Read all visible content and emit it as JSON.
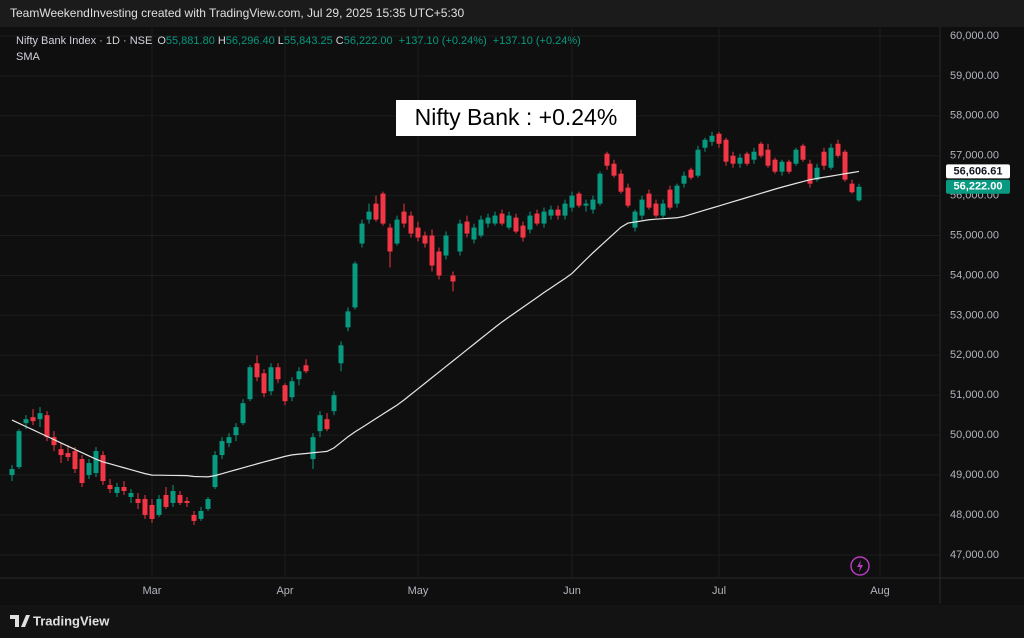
{
  "header": {
    "text": "TeamWeekendInvesting created with TradingView.com, Jul 29, 2025 15:35 UTC+5:30"
  },
  "footer": {
    "brand": "TradingView"
  },
  "chart_data": {
    "type": "candlestick",
    "symbol": "Nifty Bank Index · 1D · NSE",
    "legend_values": [
      {
        "label": "O",
        "value": "55,881.80"
      },
      {
        "label": "H",
        "value": "56,296.40"
      },
      {
        "label": "L",
        "value": "55,843.25"
      },
      {
        "label": "C",
        "value": "56,222.00"
      }
    ],
    "change_labels": [
      "+137.10 (+0.24%)",
      "+137.10 (+0.24%)"
    ],
    "annotation": "Nifty Bank : +0.24%",
    "up_color": "#089981",
    "down_color": "#f23645",
    "categories": [
      null,
      null,
      null,
      null,
      null,
      null,
      null,
      null,
      null,
      null,
      null,
      null,
      null,
      null,
      null,
      null,
      null,
      null,
      null,
      null,
      "Mar",
      null,
      null,
      null,
      null,
      null,
      null,
      null,
      null,
      null,
      null,
      null,
      null,
      null,
      null,
      null,
      null,
      null,
      null,
      "Apr",
      null,
      null,
      null,
      null,
      null,
      null,
      null,
      null,
      null,
      null,
      null,
      null,
      null,
      null,
      null,
      null,
      null,
      null,
      "May",
      null,
      null,
      null,
      null,
      null,
      null,
      null,
      null,
      null,
      null,
      null,
      null,
      null,
      null,
      null,
      null,
      null,
      null,
      null,
      null,
      null,
      "Jun",
      null,
      null,
      null,
      null,
      null,
      null,
      null,
      null,
      null,
      null,
      null,
      null,
      null,
      null,
      null,
      null,
      null,
      null,
      null,
      null,
      "Jul",
      null,
      null,
      null,
      null,
      null,
      null,
      null,
      null,
      null,
      null,
      null,
      null,
      null,
      null,
      null,
      null,
      null,
      null,
      null,
      null,
      null,
      null,
      "Aug"
    ],
    "ohlc": [
      [
        49000,
        49250,
        48850,
        49150
      ],
      [
        49200,
        50150,
        49150,
        50100
      ],
      [
        50300,
        50500,
        50150,
        50400
      ],
      [
        50450,
        50650,
        50250,
        50350
      ],
      [
        50400,
        50700,
        50200,
        50550
      ],
      [
        50500,
        50600,
        49850,
        49950
      ],
      [
        49950,
        50100,
        49600,
        49750
      ],
      [
        49650,
        49800,
        49300,
        49500
      ],
      [
        49550,
        49750,
        49350,
        49450
      ],
      [
        49600,
        49700,
        49050,
        49150
      ],
      [
        49400,
        49500,
        48700,
        48800
      ],
      [
        49000,
        49400,
        48900,
        49300
      ],
      [
        49050,
        49700,
        48950,
        49600
      ],
      [
        49500,
        49600,
        48750,
        48850
      ],
      [
        48750,
        48900,
        48550,
        48650
      ],
      [
        48550,
        48800,
        48450,
        48700
      ],
      [
        48700,
        48850,
        48500,
        48600
      ],
      [
        48450,
        48650,
        48300,
        48550
      ],
      [
        48400,
        48550,
        48150,
        48300
      ],
      [
        48400,
        48500,
        47900,
        48000
      ],
      [
        48250,
        48400,
        47800,
        47900
      ],
      [
        48000,
        48500,
        47950,
        48400
      ],
      [
        48500,
        48700,
        48150,
        48200
      ],
      [
        48300,
        48750,
        48200,
        48600
      ],
      [
        48500,
        48600,
        48250,
        48300
      ],
      [
        48350,
        48450,
        48200,
        48300
      ],
      [
        48000,
        48100,
        47750,
        47850
      ],
      [
        47900,
        48200,
        47850,
        48100
      ],
      [
        48150,
        48450,
        48100,
        48400
      ],
      [
        48700,
        49600,
        48650,
        49500
      ],
      [
        49500,
        49950,
        49400,
        49850
      ],
      [
        49800,
        50050,
        49700,
        49950
      ],
      [
        50000,
        50300,
        49850,
        50200
      ],
      [
        50300,
        50900,
        50250,
        50800
      ],
      [
        50900,
        51750,
        50850,
        51700
      ],
      [
        51800,
        52000,
        51350,
        51450
      ],
      [
        51550,
        51650,
        50950,
        51050
      ],
      [
        51100,
        51800,
        51000,
        51700
      ],
      [
        51700,
        51800,
        51300,
        51400
      ],
      [
        51250,
        51300,
        50750,
        50850
      ],
      [
        50950,
        51450,
        50850,
        51350
      ],
      [
        51400,
        51700,
        51250,
        51600
      ],
      [
        51750,
        51900,
        51550,
        51600
      ],
      [
        49400,
        50050,
        49150,
        49950
      ],
      [
        50100,
        50600,
        49950,
        50500
      ],
      [
        50400,
        50550,
        50100,
        50150
      ],
      [
        50600,
        51100,
        50500,
        51000
      ],
      [
        51800,
        52350,
        51600,
        52250
      ],
      [
        52700,
        53200,
        52600,
        53100
      ],
      [
        53200,
        54350,
        53150,
        54300
      ],
      [
        54800,
        55400,
        54700,
        55300
      ],
      [
        55400,
        55800,
        55300,
        55600
      ],
      [
        55800,
        56000,
        55350,
        55400
      ],
      [
        56050,
        56100,
        55250,
        55300
      ],
      [
        55200,
        55300,
        54200,
        54600
      ],
      [
        54800,
        55500,
        54750,
        55400
      ],
      [
        55600,
        55800,
        55200,
        55300
      ],
      [
        55500,
        55600,
        54950,
        55050
      ],
      [
        55200,
        55350,
        54850,
        54950
      ],
      [
        55000,
        55100,
        54700,
        54800
      ],
      [
        55000,
        55150,
        54100,
        54250
      ],
      [
        54600,
        54700,
        53900,
        54000
      ],
      [
        54500,
        55100,
        54400,
        55000
      ],
      [
        54000,
        54100,
        53600,
        53850
      ],
      [
        54600,
        55400,
        54500,
        55300
      ],
      [
        55350,
        55500,
        54950,
        55050
      ],
      [
        54900,
        55300,
        54800,
        55200
      ],
      [
        55000,
        55500,
        54950,
        55400
      ],
      [
        55300,
        55550,
        55200,
        55450
      ],
      [
        55300,
        55600,
        55250,
        55500
      ],
      [
        55550,
        55650,
        55250,
        55300
      ],
      [
        55200,
        55600,
        55150,
        55500
      ],
      [
        55450,
        55550,
        55050,
        55100
      ],
      [
        55250,
        55350,
        54850,
        54950
      ],
      [
        55150,
        55600,
        55050,
        55500
      ],
      [
        55550,
        55650,
        55250,
        55300
      ],
      [
        55300,
        55700,
        55200,
        55600
      ],
      [
        55500,
        55750,
        55400,
        55650
      ],
      [
        55650,
        55750,
        55400,
        55500
      ],
      [
        55500,
        55900,
        55400,
        55800
      ],
      [
        55700,
        56100,
        55600,
        56000
      ],
      [
        56050,
        56100,
        55700,
        55750
      ],
      [
        55750,
        55900,
        55600,
        55800
      ],
      [
        55650,
        56000,
        55550,
        55900
      ],
      [
        55800,
        56600,
        55750,
        56550
      ],
      [
        57050,
        57100,
        56650,
        56750
      ],
      [
        56800,
        56900,
        56450,
        56500
      ],
      [
        56550,
        56650,
        56050,
        56100
      ],
      [
        56200,
        56300,
        55700,
        55750
      ],
      [
        55200,
        55650,
        55100,
        55600
      ],
      [
        55500,
        56000,
        55400,
        55900
      ],
      [
        56050,
        56150,
        55650,
        55700
      ],
      [
        55800,
        55900,
        55450,
        55500
      ],
      [
        55500,
        55900,
        55450,
        55800
      ],
      [
        56150,
        56250,
        55650,
        55700
      ],
      [
        55800,
        56300,
        55700,
        56250
      ],
      [
        56300,
        56600,
        56200,
        56500
      ],
      [
        56650,
        56700,
        56400,
        56450
      ],
      [
        56500,
        57250,
        56450,
        57150
      ],
      [
        57200,
        57450,
        57100,
        57400
      ],
      [
        57350,
        57600,
        57250,
        57500
      ],
      [
        57550,
        57600,
        57200,
        57300
      ],
      [
        57400,
        57450,
        56750,
        56850
      ],
      [
        57000,
        57100,
        56700,
        56800
      ],
      [
        56800,
        57050,
        56700,
        56950
      ],
      [
        57050,
        57100,
        56750,
        56800
      ],
      [
        56900,
        57200,
        56800,
        57100
      ],
      [
        57300,
        57350,
        56950,
        57000
      ],
      [
        57150,
        57300,
        56700,
        56750
      ],
      [
        56900,
        56950,
        56550,
        56600
      ],
      [
        56600,
        56900,
        56500,
        56850
      ],
      [
        56850,
        56900,
        56550,
        56600
      ],
      [
        56800,
        57200,
        56750,
        57150
      ],
      [
        57250,
        57300,
        56850,
        56900
      ],
      [
        56800,
        56900,
        56200,
        56300
      ],
      [
        56400,
        56800,
        56350,
        56700
      ],
      [
        57100,
        57200,
        56650,
        56750
      ],
      [
        56700,
        57300,
        56650,
        57200
      ],
      [
        57300,
        57400,
        56950,
        57000
      ],
      [
        57100,
        57150,
        56350,
        56400
      ],
      [
        56300,
        56400,
        56050,
        56085
      ],
      [
        55881.8,
        56296.4,
        55843.25,
        56222
      ],
      null,
      null,
      null
    ],
    "series": [
      {
        "name": "SMA",
        "color": "#e6e6e6",
        "values": [
          50377,
          50295,
          50213,
          50132,
          50050,
          49968,
          49887,
          49805,
          49723,
          49642,
          49560,
          49478,
          49397,
          49329,
          49280,
          49231,
          49182,
          49133,
          49084,
          49035,
          48998,
          48996,
          48993,
          48990,
          48988,
          48985,
          48963,
          48958,
          48953,
          48985,
          49034,
          49083,
          49132,
          49181,
          49230,
          49279,
          49327,
          49373,
          49420,
          49467,
          49505,
          49523,
          49540,
          49558,
          49575,
          49593,
          49680,
          49820,
          49960,
          50080,
          50192,
          50304,
          50416,
          50528,
          50640,
          50752,
          50880,
          51020,
          51160,
          51300,
          51440,
          51580,
          51720,
          51860,
          52000,
          52140,
          52280,
          52420,
          52560,
          52700,
          52835,
          52958,
          53080,
          53203,
          53325,
          53448,
          53573,
          53690,
          53807,
          53923,
          54050,
          54225,
          54400,
          54569,
          54729,
          54889,
          55049,
          55209,
          55312,
          55340,
          55368,
          55396,
          55410,
          55422,
          55433,
          55445,
          55480,
          55533,
          55585,
          55638,
          55690,
          55743,
          55795,
          55848,
          55900,
          55953,
          56005,
          56058,
          56110,
          56163,
          56213,
          56260,
          56307,
          56353,
          56400,
          56430,
          56460,
          56489,
          56518,
          56548,
          56577,
          56606.61,
          null,
          null,
          null
        ]
      }
    ],
    "price_tags": [
      {
        "value": 56606.61,
        "label": "56,606.61",
        "color": "#ffffff",
        "text_color": "#131722"
      },
      {
        "value": 56222,
        "label": "56,222.00",
        "color": "#089981",
        "text_color": "#ffffff"
      }
    ],
    "ylim": [
      46420,
      60200
    ],
    "yticks": [
      {
        "value": 47000,
        "label": "47,000.00"
      },
      {
        "value": 48000,
        "label": "48,000.00"
      },
      {
        "value": 49000,
        "label": "49,000.00"
      },
      {
        "value": 50000,
        "label": "50,000.00"
      },
      {
        "value": 51000,
        "label": "51,000.00"
      },
      {
        "value": 52000,
        "label": "52,000.00"
      },
      {
        "value": 53000,
        "label": "53,000.00"
      },
      {
        "value": 54000,
        "label": "54,000.00"
      },
      {
        "value": 55000,
        "label": "55,000.00"
      },
      {
        "value": 56000,
        "label": "56,000.00"
      },
      {
        "value": 57000,
        "label": "57,000.00"
      },
      {
        "value": 58000,
        "label": "58,000.00"
      },
      {
        "value": 59000,
        "label": "59,000.00"
      },
      {
        "value": 60000,
        "label": "60,000.00"
      }
    ],
    "grid": true
  }
}
